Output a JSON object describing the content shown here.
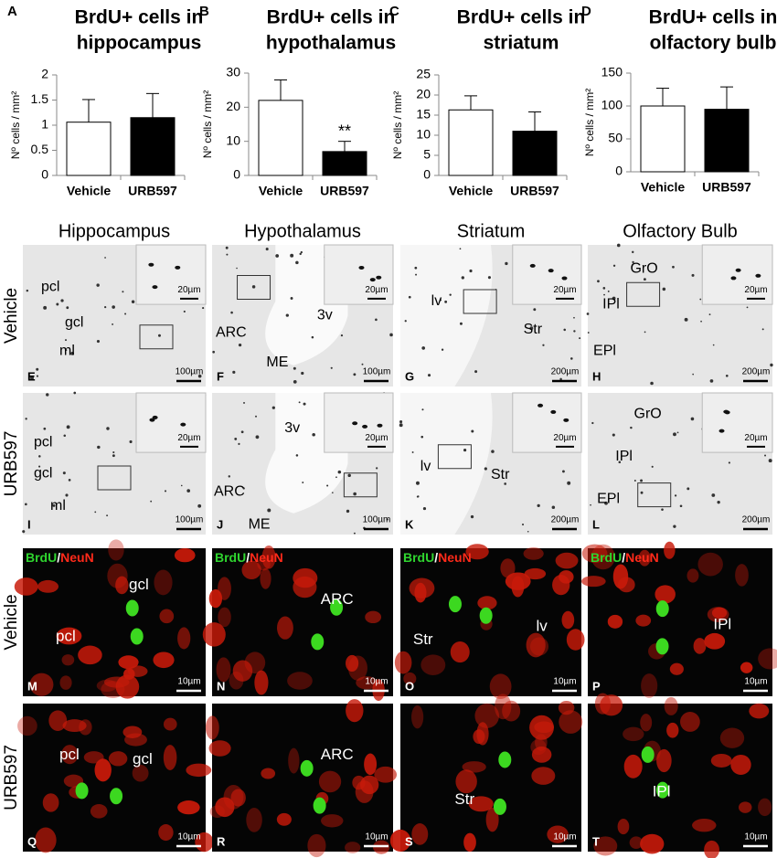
{
  "chart_data": [
    {
      "type": "bar",
      "panel": "A",
      "title": [
        "BrdU+ cells in",
        "hippocampus"
      ],
      "ylabel": "Nº cells / mm²",
      "categories": [
        "Vehicle",
        "URB597"
      ],
      "values": [
        1.06,
        1.15
      ],
      "errors": [
        0.45,
        0.48
      ],
      "colors": [
        "#ffffff",
        "#000000"
      ],
      "ylim": [
        0,
        2
      ],
      "yticks": [
        0,
        0.5,
        1,
        1.5,
        2
      ]
    },
    {
      "type": "bar",
      "panel": "B",
      "title": [
        "BrdU+ cells in",
        "hypothalamus"
      ],
      "ylabel": "Nº cells / mm²",
      "categories": [
        "Vehicle",
        "URB597"
      ],
      "values": [
        22,
        7
      ],
      "errors": [
        6,
        3
      ],
      "colors": [
        "#ffffff",
        "#000000"
      ],
      "ylim": [
        0,
        30
      ],
      "yticks": [
        0,
        10,
        20,
        30
      ],
      "annotation": "**"
    },
    {
      "type": "bar",
      "panel": "C",
      "title": [
        "BrdU+ cells in",
        "striatum"
      ],
      "ylabel": "Nº cells / mm²",
      "categories": [
        "Vehicle",
        "URB597"
      ],
      "values": [
        16.3,
        11
      ],
      "errors": [
        3.5,
        4.8
      ],
      "colors": [
        "#ffffff",
        "#000000"
      ],
      "ylim": [
        0,
        25
      ],
      "yticks": [
        0,
        5,
        10,
        15,
        20,
        25
      ]
    },
    {
      "type": "bar",
      "panel": "D",
      "title": [
        "BrdU+ cells in",
        "olfactory bulb"
      ],
      "ylabel": "Nº cells / mm²",
      "categories": [
        "Vehicle",
        "URB597"
      ],
      "values": [
        100,
        95
      ],
      "errors": [
        27,
        34
      ],
      "colors": [
        "#ffffff",
        "#000000"
      ],
      "ylim": [
        0,
        150
      ],
      "yticks": [
        0,
        50,
        100,
        150
      ]
    }
  ],
  "column_headers": [
    "Hippocampus",
    "Hypothalamus",
    "Striatum",
    "Olfactory Bulb"
  ],
  "row_labels": [
    "Vehicle",
    "URB597",
    "Vehicle",
    "URB597"
  ],
  "stain_labels": [
    "BrdU",
    "/",
    "NeuN"
  ],
  "panels": [
    {
      "letter": "E",
      "labels": [
        "pcl",
        "gcl",
        "ml"
      ],
      "scale": "100µm",
      "inset_scale": "20µm"
    },
    {
      "letter": "F",
      "labels": [
        "ARC",
        "3v",
        "ME"
      ],
      "scale": "100µm",
      "inset_scale": "20µm"
    },
    {
      "letter": "G",
      "labels": [
        "lv",
        "Str"
      ],
      "scale": "200µm",
      "inset_scale": "20µm"
    },
    {
      "letter": "H",
      "labels": [
        "GrO",
        "IPl",
        "EPl"
      ],
      "scale": "200µm",
      "inset_scale": "20µm"
    },
    {
      "letter": "I",
      "labels": [
        "pcl",
        "gcl",
        "ml"
      ],
      "scale": "100µm",
      "inset_scale": "20µm"
    },
    {
      "letter": "J",
      "labels": [
        "3v",
        "ARC",
        "ME"
      ],
      "scale": "100µm",
      "inset_scale": "20µm"
    },
    {
      "letter": "K",
      "labels": [
        "lv",
        "Str"
      ],
      "scale": "200µm",
      "inset_scale": "20µm"
    },
    {
      "letter": "L",
      "labels": [
        "GrO",
        "IPl",
        "EPl"
      ],
      "scale": "200µm",
      "inset_scale": "20µm"
    },
    {
      "letter": "M",
      "labels": [
        "gcl",
        "pcl"
      ],
      "scale": "10µm"
    },
    {
      "letter": "N",
      "labels": [
        "ARC"
      ],
      "scale": "10µm"
    },
    {
      "letter": "O",
      "labels": [
        "Str",
        "lv"
      ],
      "scale": "10µm"
    },
    {
      "letter": "P",
      "labels": [
        "IPl"
      ],
      "scale": "10µm"
    },
    {
      "letter": "Q",
      "labels": [
        "pcl",
        "gcl"
      ],
      "scale": "10µm"
    },
    {
      "letter": "R",
      "labels": [
        "ARC"
      ],
      "scale": "10µm"
    },
    {
      "letter": "S",
      "labels": [
        "Str"
      ],
      "scale": "10µm"
    },
    {
      "letter": "T",
      "labels": [
        "IPl"
      ],
      "scale": "10µm"
    }
  ]
}
